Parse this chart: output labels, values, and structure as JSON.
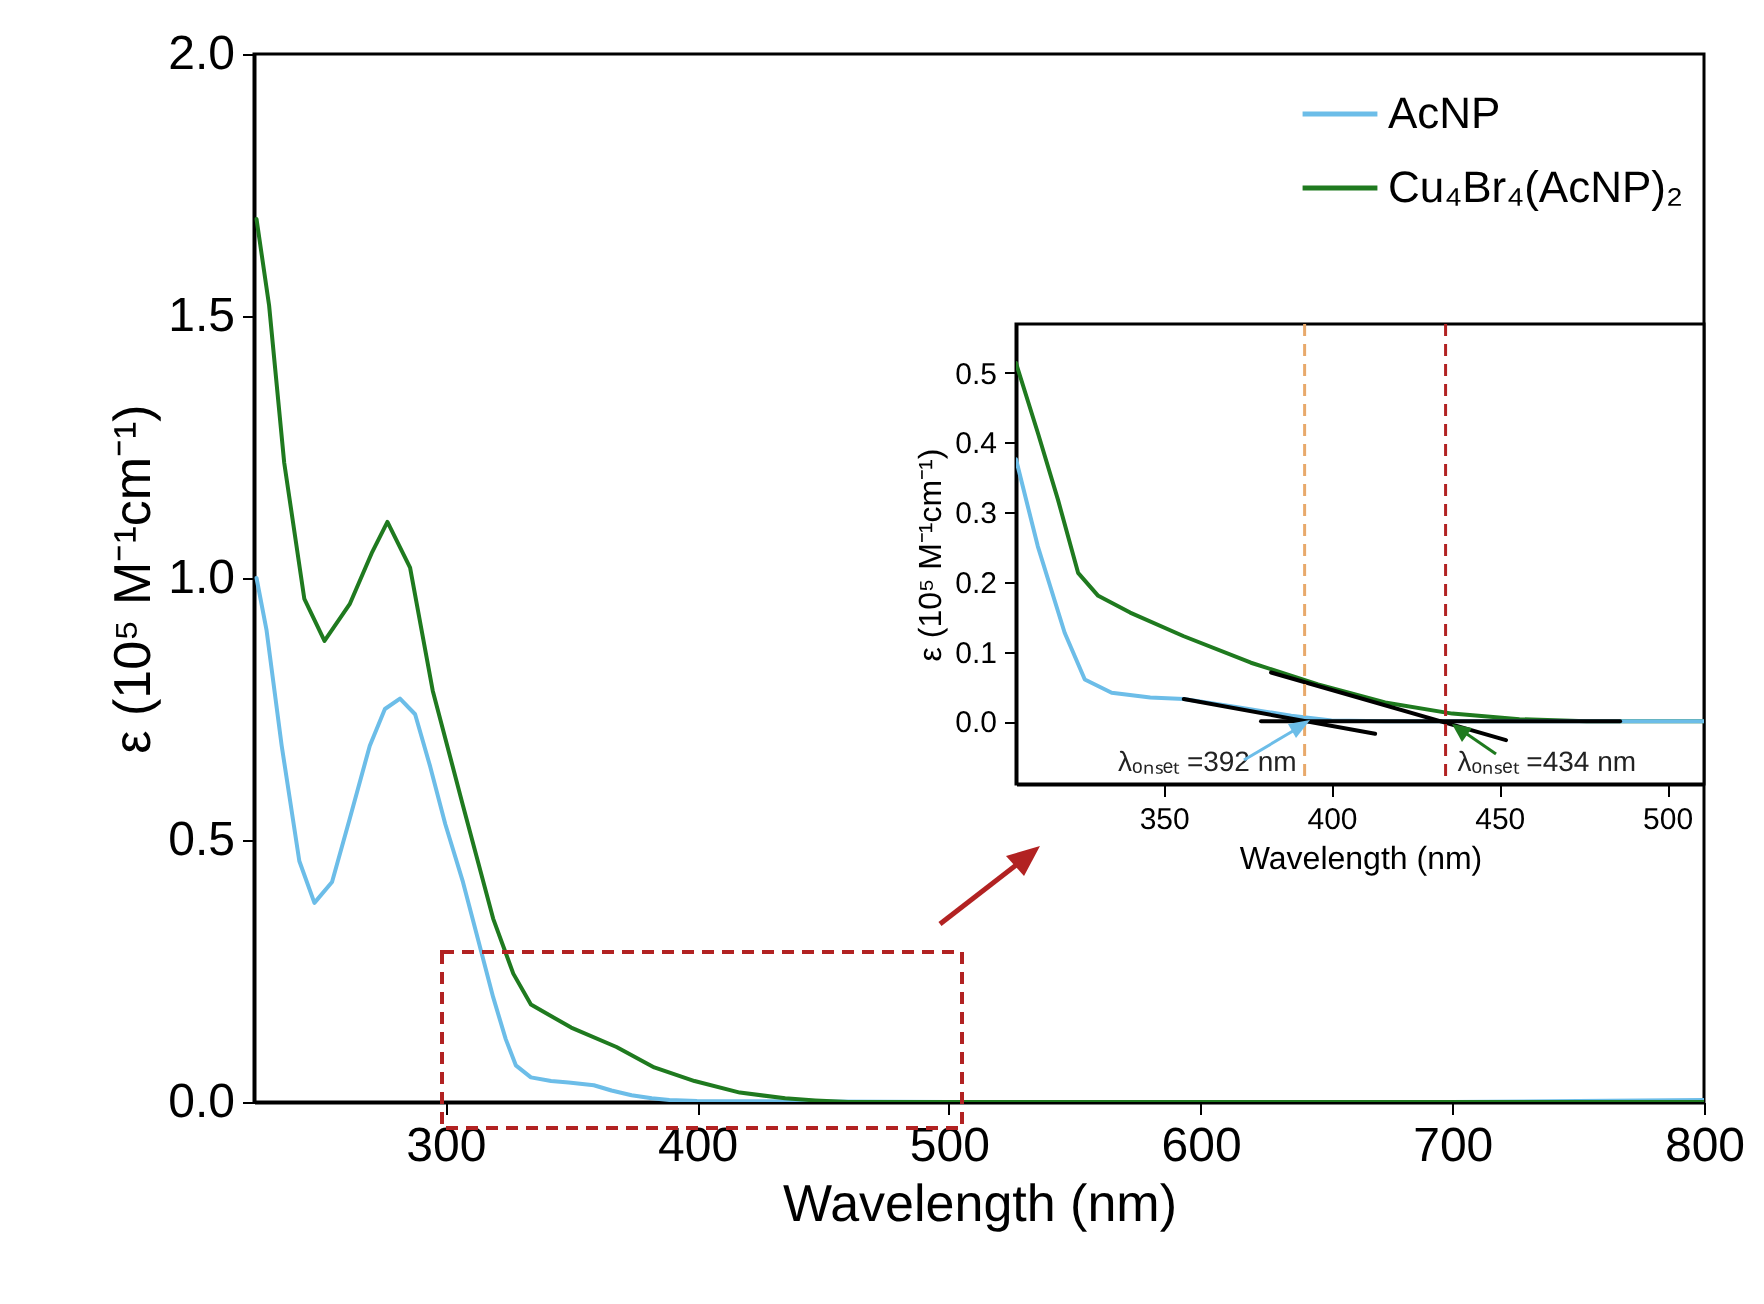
{
  "chart_data": [
    {
      "type": "line",
      "xlabel": "Wavelength (nm)",
      "ylabel": "ε (10⁵ M⁻¹cm⁻¹)",
      "xlim": [
        224,
        800
      ],
      "ylim": [
        0,
        2
      ],
      "xticks": [
        300,
        400,
        500,
        600,
        700,
        800
      ],
      "yticks": [
        {
          "value": 0,
          "label": "0.0"
        },
        {
          "value": 0.5,
          "label": "0.5"
        },
        {
          "value": 1,
          "label": "1.0"
        },
        {
          "value": 1.5,
          "label": "1.5"
        },
        {
          "value": 2,
          "label": "2.0"
        }
      ],
      "grid": false,
      "legend": "top right",
      "line_style": "solid",
      "marker": "none",
      "series": [
        {
          "name": "AcNP",
          "color": "#6cbde8",
          "x": [
            225,
            229,
            235,
            242,
            248,
            255,
            262,
            270,
            276,
            282,
            288,
            294,
            300,
            307,
            313,
            319,
            324,
            328,
            334,
            342,
            349,
            359,
            366,
            374,
            382,
            389,
            400,
            450,
            500,
            600,
            700,
            750,
            800
          ],
          "values": [
            1.0,
            0.9,
            0.68,
            0.46,
            0.38,
            0.42,
            0.54,
            0.68,
            0.75,
            0.77,
            0.74,
            0.64,
            0.53,
            0.42,
            0.31,
            0.2,
            0.12,
            0.07,
            0.047,
            0.04,
            0.037,
            0.032,
            0.022,
            0.013,
            0.007,
            0.004,
            0.002,
            0.001,
            0,
            0,
            0,
            0.002,
            0.004
          ]
        },
        {
          "name": "Cu₄Br₄(AcNP)₂",
          "color": "#1f7a1f",
          "x": [
            225,
            230,
            236,
            244,
            252,
            262,
            271,
            277,
            286,
            295,
            307,
            319,
            327,
            334,
            350,
            368,
            383,
            399,
            417,
            435,
            447,
            460,
            500,
            600,
            700,
            800
          ],
          "values": [
            1.685,
            1.52,
            1.22,
            0.96,
            0.88,
            0.95,
            1.05,
            1.107,
            1.02,
            0.785,
            0.566,
            0.35,
            0.245,
            0.186,
            0.142,
            0.105,
            0.066,
            0.04,
            0.018,
            0.007,
            0.003,
            0,
            0,
            0,
            0,
            0
          ]
        }
      ]
    },
    {
      "type": "line",
      "xlabel": "Wavelength (nm)",
      "ylabel": "ε (10⁵ M⁻¹cm⁻¹)",
      "xlim": [
        306,
        511
      ],
      "ylim": [
        -0.09,
        0.57
      ],
      "xticks": [
        350,
        400,
        450,
        500
      ],
      "yticks": [
        {
          "value": 0,
          "label": "0.0"
        },
        {
          "value": 0.1,
          "label": "0.1"
        },
        {
          "value": 0.2,
          "label": "0.2"
        },
        {
          "value": 0.3,
          "label": "0.3"
        },
        {
          "value": 0.4,
          "label": "0.4"
        },
        {
          "value": 0.5,
          "label": "0.5"
        }
      ],
      "grid": false,
      "legend": false,
      "line_style": "solid",
      "marker": "none",
      "series": [
        {
          "color": "#1f7a1f",
          "x": [
            306,
            312.5,
            318.5,
            324.5,
            330.5,
            340,
            356,
            376,
            396,
            416,
            436,
            456,
            476,
            511
          ],
          "values": [
            0.514,
            0.414,
            0.318,
            0.213,
            0.18,
            0.156,
            0.122,
            0.084,
            0.053,
            0.027,
            0.011,
            0.003,
            0,
            0
          ]
        },
        {
          "color": "#6cbde8",
          "x": [
            306,
            312.5,
            320.5,
            326.5,
            334.5,
            346,
            356,
            372,
            388,
            400,
            416,
            511
          ],
          "values": [
            0.376,
            0.251,
            0.127,
            0.06,
            0.041,
            0.034,
            0.032,
            0.02,
            0.008,
            0.001,
            0,
            0
          ]
        },
        {
          "type": "line",
          "color": "#000000",
          "x": [
            379,
            486
          ],
          "values": [
            0,
            0
          ]
        },
        {
          "type": "line",
          "color": "#000000",
          "x": [
            356,
            413
          ],
          "values": [
            0.032,
            -0.018
          ]
        },
        {
          "type": "line",
          "color": "#000000",
          "x": [
            382,
            452
          ],
          "values": [
            0.07,
            -0.027
          ]
        }
      ],
      "ref_lines": [
        {
          "axis": "x",
          "value": 392,
          "color": "#e8a96b",
          "line_style": "dashed"
        },
        {
          "axis": "x",
          "value": 434,
          "color": "#b22222",
          "line_style": "dashed"
        }
      ],
      "annotations": [
        {
          "text": "λₒₙₛₑₜ =392 nm",
          "x": 392,
          "y": 0
        },
        {
          "text": "λₒₙₛₑₜ =434 nm",
          "x": 434,
          "y": 0
        }
      ]
    }
  ]
}
